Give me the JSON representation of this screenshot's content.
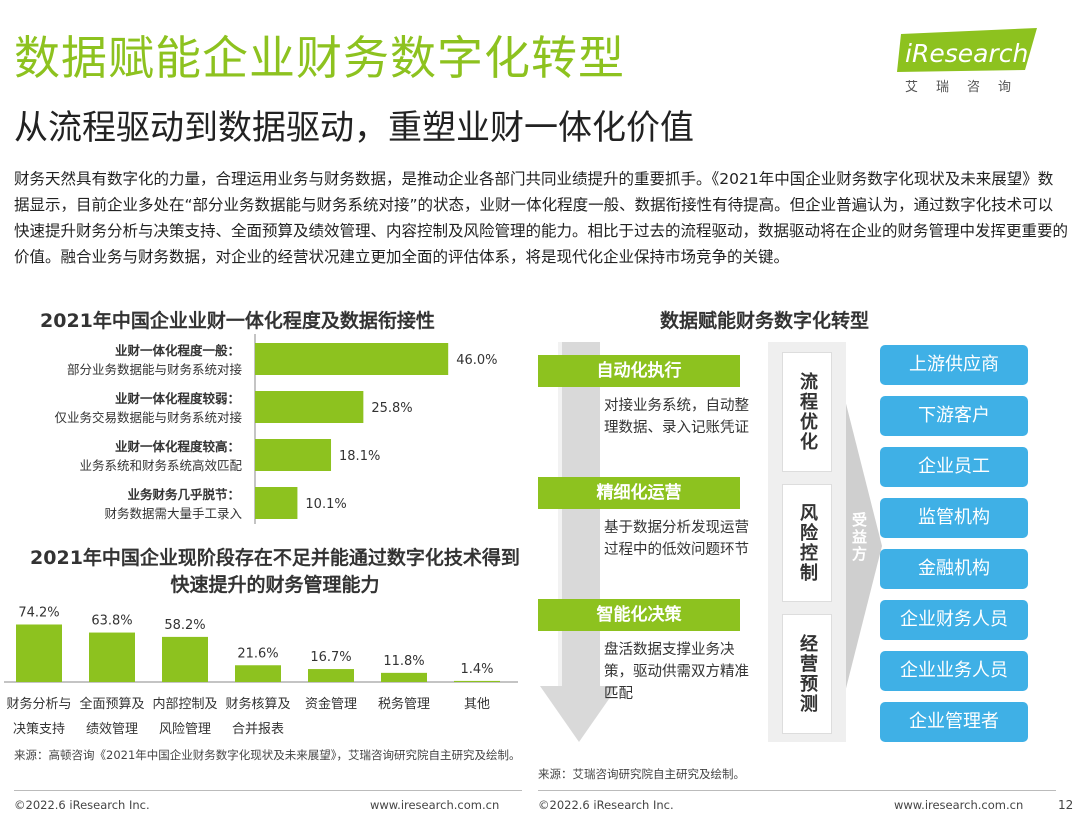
{
  "header": {
    "title": "数据赋能企业财务数字化转型",
    "subtitle": "从流程驱动到数据驱动，重塑业财一体化价值",
    "logo_text": "iResearch",
    "logo_sub": "艾瑞咨询"
  },
  "intro": "财务天然具有数字化的力量，合理运用业务与财务数据，是推动企业各部门共同业绩提升的重要抓手。《2021年中国企业财务数字化现状及未来展望》数据显示，目前企业多处在“部分业务数据能与财务系统对接”的状态，业财一体化程度一般、数据衔接性有待提高。但企业普遍认为，通过数字化技术可以快速提升财务分析与决策支持、全面预算及绩效管理、内容控制及风险管理的能力。相比于过去的流程驱动，数据驱动将在企业的财务管理中发挥更重要的价值。融合业务与财务数据，对企业的经营状况建立更加全面的评估体系，将是现代化企业保持市场竞争的关键。",
  "colors": {
    "accent": "#8dc21f",
    "blue": "#3fb0e6",
    "arrow_gray": "#d9d9d9"
  },
  "chart_data": [
    {
      "type": "bar",
      "orientation": "horizontal",
      "title": "2021年中国企业业财一体化程度及数据衔接性",
      "categories": [
        {
          "bold": "业财一体化程度一般：",
          "sub": "部分业务数据能与财务系统对接"
        },
        {
          "bold": "业财一体化程度较弱：",
          "sub": "仅业务交易数据能与财务系统对接"
        },
        {
          "bold": "业财一体化程度较高：",
          "sub": "业务系统和财务系统高效匹配"
        },
        {
          "bold": "业务财务几乎脱节：",
          "sub": "财务数据需大量手工录入"
        }
      ],
      "values": [
        46.0,
        25.8,
        18.1,
        10.1
      ],
      "labels": [
        "46.0%",
        "25.8%",
        "18.1%",
        "10.1%"
      ],
      "xlim": [
        0,
        50
      ]
    },
    {
      "type": "bar",
      "orientation": "vertical",
      "title": "2021年中国企业现阶段存在不足并能通过数字化技术得到快速提升的财务管理能力",
      "categories": [
        [
          "财务分析与",
          "决策支持"
        ],
        [
          "全面预算及",
          "绩效管理"
        ],
        [
          "内部控制及",
          "风险管理"
        ],
        [
          "财务核算及",
          "合并报表"
        ],
        [
          "资金管理"
        ],
        [
          "税务管理"
        ],
        [
          "其他"
        ]
      ],
      "values": [
        74.2,
        63.8,
        58.2,
        21.6,
        16.7,
        11.8,
        1.4
      ],
      "labels": [
        "74.2%",
        "63.8%",
        "58.2%",
        "21.6%",
        "16.7%",
        "11.8%",
        "1.4%"
      ],
      "ylim": [
        0,
        80
      ]
    }
  ],
  "diagram": {
    "title": "数据赋能财务数字化转型",
    "steps": [
      {
        "label": "自动化执行",
        "desc": "对接业务系统，自动整理数据、录入记账凭证"
      },
      {
        "label": "精细化运营",
        "desc": "基于数据分析发现运营过程中的低效问题环节"
      },
      {
        "label": "智能化决策",
        "desc": "盘活数据支撑业务决策，驱动供需双方精准匹配"
      }
    ],
    "middle": [
      "流程优化",
      "风险控制",
      "经营预测"
    ],
    "beneficiary_label": "受益方",
    "stakeholders": [
      "上游供应商",
      "下游客户",
      "企业员工",
      "监管机构",
      "金融机构",
      "企业财务人员",
      "企业业务人员",
      "企业管理者"
    ]
  },
  "sources": {
    "left": "来源：高顿咨询《2021年中国企业财务数字化现状及未来展望》，艾瑞咨询研究院自主研究及绘制。",
    "right": "来源：艾瑞咨询研究院自主研究及绘制。"
  },
  "footer": {
    "copyright_left": "©2022.6 iResearch Inc.",
    "url_left": "www.iresearch.com.cn",
    "copyright_right": "©2022.6 iResearch Inc.",
    "url_right": "www.iresearch.com.cn",
    "page": "12"
  }
}
